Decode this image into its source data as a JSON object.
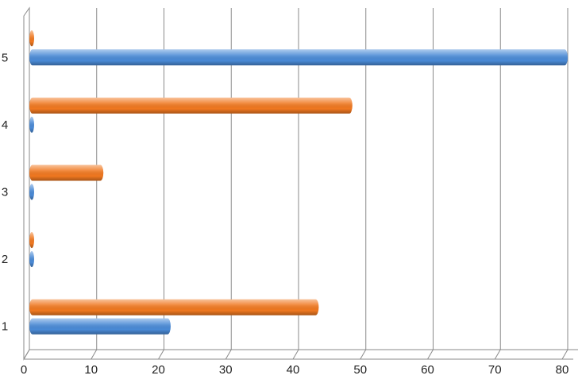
{
  "chart_data": {
    "type": "bar",
    "orientation": "horizontal",
    "categories": [
      "1",
      "2",
      "3",
      "4",
      "5"
    ],
    "series": [
      {
        "color": "#4a8ad6",
        "values": [
          21,
          0,
          0,
          0,
          80
        ]
      },
      {
        "color": "#f07820",
        "values": [
          43,
          0,
          11,
          48,
          0
        ]
      }
    ],
    "xlim": [
      0,
      80
    ],
    "xticks": [
      0,
      10,
      20,
      30,
      40,
      50,
      60,
      70,
      80
    ],
    "grid": true
  }
}
